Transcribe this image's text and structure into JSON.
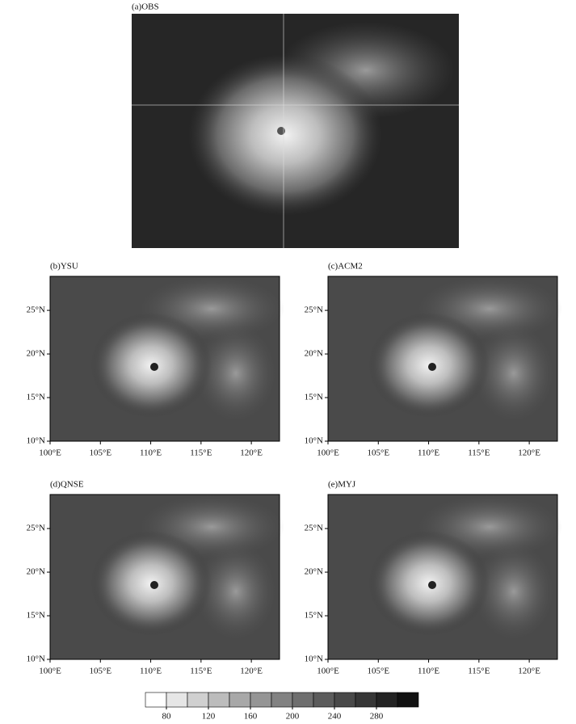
{
  "panels": [
    {
      "label": "(a)OBS"
    },
    {
      "label": "(b)YSU"
    },
    {
      "label": "(c)ACM2"
    },
    {
      "label": "(d)QNSE"
    },
    {
      "label": "(e)MYJ"
    }
  ],
  "map_axes": {
    "xlim": [
      100,
      122.8
    ],
    "ylim": [
      10,
      28.9
    ],
    "xticks": [
      {
        "value": 100,
        "label": "100°E"
      },
      {
        "value": 105,
        "label": "105°E"
      },
      {
        "value": 110,
        "label": "110°E"
      },
      {
        "value": 115,
        "label": "115°E"
      },
      {
        "value": 120,
        "label": "120°E"
      }
    ],
    "yticks": [
      {
        "value": 10,
        "label": "10°N"
      },
      {
        "value": 15,
        "label": "15°N"
      },
      {
        "value": 20,
        "label": "20°N"
      },
      {
        "value": 25,
        "label": "25°N"
      }
    ]
  },
  "colorbar": {
    "clim": [
      60,
      320
    ],
    "ticks": [
      80,
      120,
      160,
      200,
      240,
      280
    ],
    "colors": [
      "#ffffff",
      "#e6e6e6",
      "#d0d0d0",
      "#bcbcbc",
      "#a8a8a8",
      "#959595",
      "#828282",
      "#6f6f6f",
      "#5c5c5c",
      "#494949",
      "#363636",
      "#232323",
      "#111111"
    ]
  }
}
